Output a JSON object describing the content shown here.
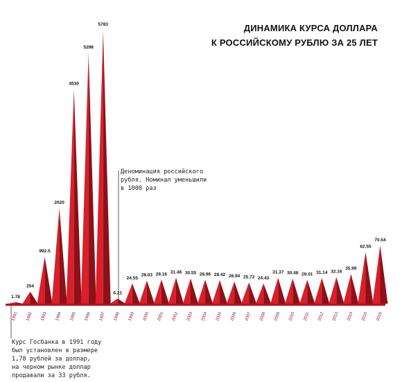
{
  "title": {
    "line1": "ДИНАМИКА КУРСА ДОЛЛАРА",
    "line2": "К РОССИЙСКОМУ РУБЛЮ ЗА 25 ЛЕТ"
  },
  "annotations": {
    "denomination": [
      "Деноминация российского",
      "рубля. Номинал уменьшили",
      "в 1000 раз"
    ],
    "gosbank": [
      "Курс Госбанка в 1991 году",
      "был установлен в размере",
      "1,78 рублей за доллар,",
      "на черном рынке доллар",
      "продавали за 33 рубля."
    ]
  },
  "colors": {
    "peak_light": "#d81f2a",
    "peak_dark": "#8e1018",
    "baseline": "#b5141c",
    "label": "#111111"
  },
  "chart_data": {
    "type": "area",
    "title": "ДИНАМИКА КУРСА ДОЛЛАРА К РОССИЙСКОМУ РУБЛЮ ЗА 25 ЛЕТ",
    "xlabel": "",
    "ylabel": "",
    "categories": [
      "1991",
      "1992",
      "1993",
      "1994",
      "1995",
      "1996",
      "1997",
      "1998",
      "1999",
      "2000",
      "2001",
      "2002",
      "2003",
      "2004",
      "2005",
      "2006",
      "2007",
      "2008",
      "2009",
      "2010",
      "2011",
      "2012",
      "2013",
      "2014",
      "2015",
      "2016"
    ],
    "values": [
      1.78,
      254,
      992.5,
      2020,
      4530,
      5298,
      5783,
      6.21,
      24.55,
      28.03,
      29.16,
      31.48,
      30.55,
      28.96,
      28.42,
      26.94,
      25.73,
      24.43,
      31.37,
      30.48,
      29.01,
      31.14,
      32.16,
      35.99,
      62.55,
      70.54
    ],
    "value_labels": [
      "1.78",
      "254",
      "992.5",
      "2020",
      "4530",
      "5298",
      "5783",
      "6.21",
      "24.55",
      "28.03",
      "29.16",
      "31.48",
      "30.55",
      "28.96",
      "28.42",
      "26.94",
      "25.73",
      "24.43",
      "31.37",
      "30.48",
      "29.01",
      "31.14",
      "32.16",
      "35.99",
      "62.55",
      "70.54"
    ],
    "grid": false,
    "legend": "none"
  }
}
